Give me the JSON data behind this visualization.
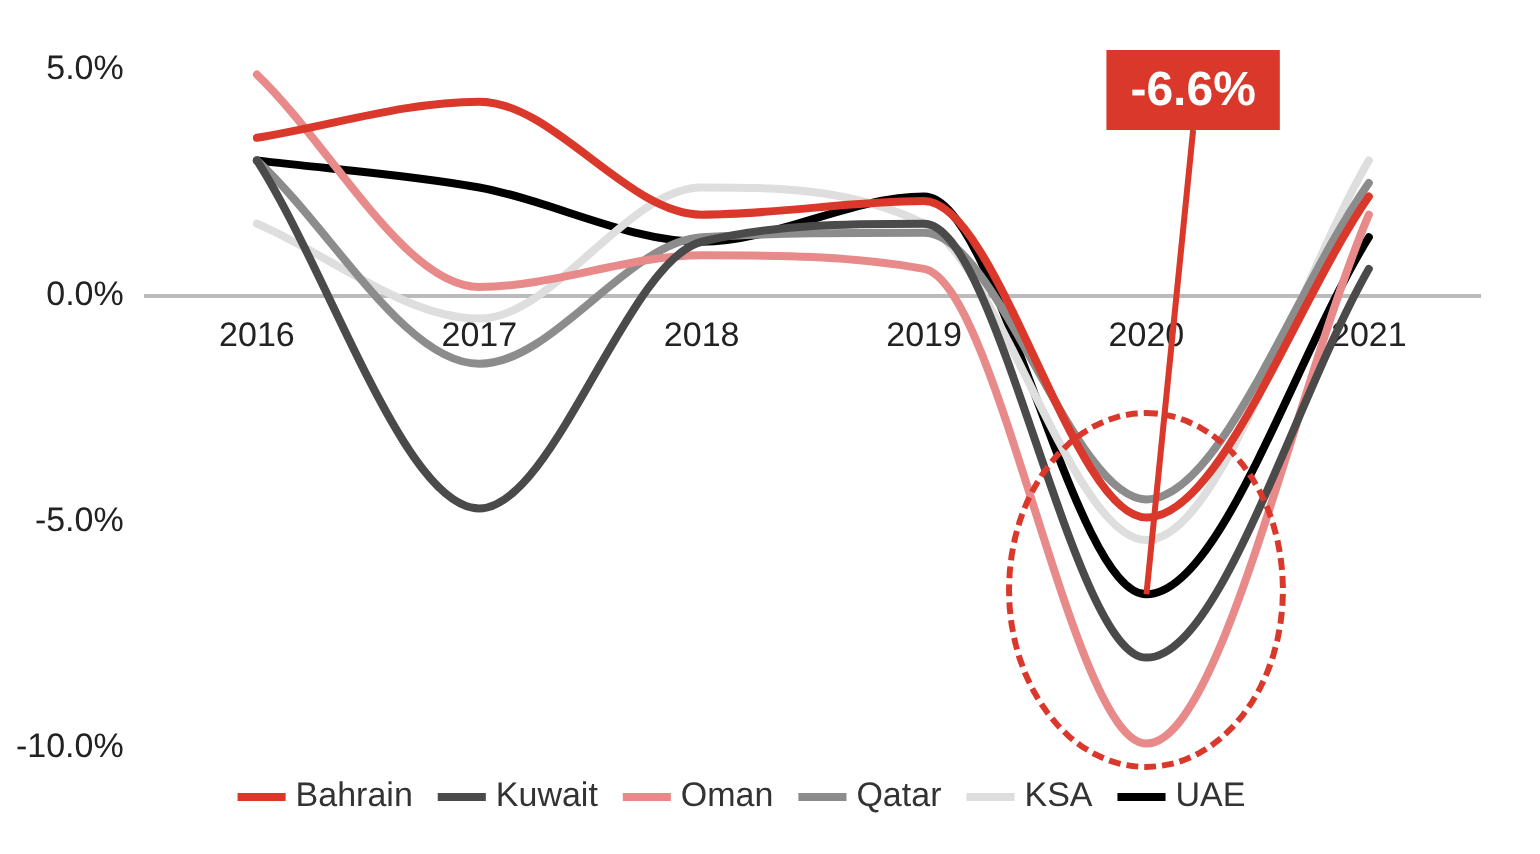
{
  "chart_data": {
    "type": "line",
    "categories": [
      "2016",
      "2017",
      "2018",
      "2019",
      "2020",
      "2021"
    ],
    "series": [
      {
        "name": "Bahrain",
        "color": "#d9382b",
        "values": [
          3.5,
          4.3,
          1.8,
          2.1,
          -4.9,
          2.2
        ]
      },
      {
        "name": "Kuwait",
        "color": "#4a4a4a",
        "values": [
          3.0,
          -4.7,
          1.2,
          1.6,
          -8.0,
          0.6
        ]
      },
      {
        "name": "Oman",
        "color": "#e88a8a",
        "values": [
          4.9,
          0.2,
          0.9,
          0.6,
          -9.9,
          1.8
        ]
      },
      {
        "name": "Qatar",
        "color": "#8c8c8c",
        "values": [
          3.0,
          -1.5,
          1.3,
          1.4,
          -4.5,
          2.5
        ]
      },
      {
        "name": "KSA",
        "color": "#dedede",
        "values": [
          1.6,
          -0.5,
          2.4,
          1.6,
          -5.4,
          3.0
        ]
      },
      {
        "name": "UAE",
        "color": "#000000",
        "values": [
          3.0,
          2.4,
          1.2,
          2.2,
          -6.6,
          1.3
        ]
      }
    ],
    "ylim": [
      -10,
      5
    ],
    "yticks": [
      {
        "value": 5,
        "label": "5.0%"
      },
      {
        "value": 0,
        "label": "0.0%"
      },
      {
        "value": -5,
        "label": "-5.0%"
      },
      {
        "value": -10,
        "label": "-10.0%"
      }
    ],
    "annotations": [
      {
        "text": "-6.6%",
        "x": "2020",
        "y": -6.6
      }
    ],
    "grid": false,
    "legend": "bottom",
    "marker": "none",
    "line_style": "solid"
  }
}
